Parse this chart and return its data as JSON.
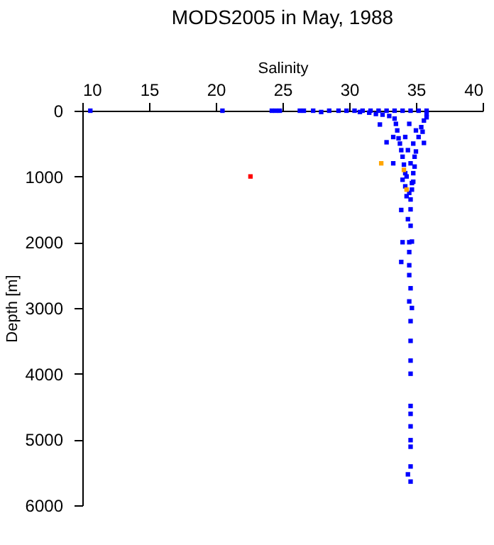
{
  "chart_data": {
    "type": "scatter",
    "title": "MODS2005 in May, 1988",
    "xlabel": "Salinity",
    "ylabel": "Depth [m]",
    "xlim": [
      10,
      40
    ],
    "xticks": [
      10,
      15,
      20,
      25,
      30,
      35,
      40
    ],
    "ylim": [
      6000,
      0
    ],
    "yticks": [
      0,
      1000,
      2000,
      3000,
      4000,
      5000,
      6000
    ],
    "grid": false,
    "legend": false,
    "marker": "square",
    "series": [
      {
        "color": "#0000ff",
        "x": [
          10.6,
          20.5,
          24.2,
          24.5,
          24.8,
          26.3,
          26.6,
          27.3,
          27.9,
          28.5,
          29.2,
          29.8,
          30.4,
          31,
          31.6,
          32.2,
          32.8,
          33.4,
          34,
          34.6,
          35.2,
          35.8,
          30.8,
          31.5,
          32,
          35.8,
          32.5,
          33,
          35.8,
          33.4,
          35.6,
          32.3,
          33.5,
          35.4,
          33.6,
          35.5,
          33.3,
          33.7,
          35.2,
          32.8,
          33.8,
          35.6,
          33.9,
          35,
          34,
          33.3,
          34.1,
          34.9,
          34.2,
          34.8,
          34,
          34.8,
          34.2,
          34.7,
          34.3,
          34.6,
          33.9,
          34.6,
          34.4,
          34.6,
          34,
          34.5,
          34.7,
          34.5,
          33.9,
          34.5,
          34.5,
          34.6,
          34.5,
          34.7,
          34.6,
          34.6,
          34.6,
          34.6,
          34.6,
          34.6,
          34.6,
          34.6,
          34.6,
          34.6,
          34.4,
          34.6,
          34.5,
          35,
          34.2,
          34.8,
          34.4,
          34.9,
          34.6,
          34.3,
          34.7,
          34.5
        ],
        "values": [
          0,
          0,
          0,
          0,
          0,
          0,
          0,
          0,
          20,
          0,
          0,
          0,
          0,
          0,
          0,
          0,
          0,
          0,
          0,
          0,
          0,
          0,
          20,
          30,
          50,
          50,
          60,
          80,
          100,
          120,
          150,
          210,
          200,
          250,
          300,
          320,
          400,
          420,
          400,
          480,
          500,
          490,
          600,
          620,
          700,
          800,
          820,
          850,
          950,
          950,
          1050,
          1080,
          1150,
          1200,
          1300,
          1350,
          1510,
          1500,
          1650,
          1750,
          2000,
          2000,
          1990,
          2150,
          2300,
          2350,
          2500,
          2700,
          2900,
          3000,
          3200,
          3500,
          3800,
          4000,
          4490,
          4610,
          4800,
          5010,
          5110,
          5410,
          5530,
          5640,
          200,
          300,
          400,
          500,
          600,
          700,
          800,
          1000,
          1100,
          1250
        ]
      },
      {
        "color": "#ffa500",
        "x": [
          32.4,
          34.1,
          34.3
        ],
        "values": [
          800,
          900,
          1200
        ]
      },
      {
        "color": "#ff0000",
        "x": [
          22.6
        ],
        "values": [
          1000
        ]
      }
    ]
  }
}
